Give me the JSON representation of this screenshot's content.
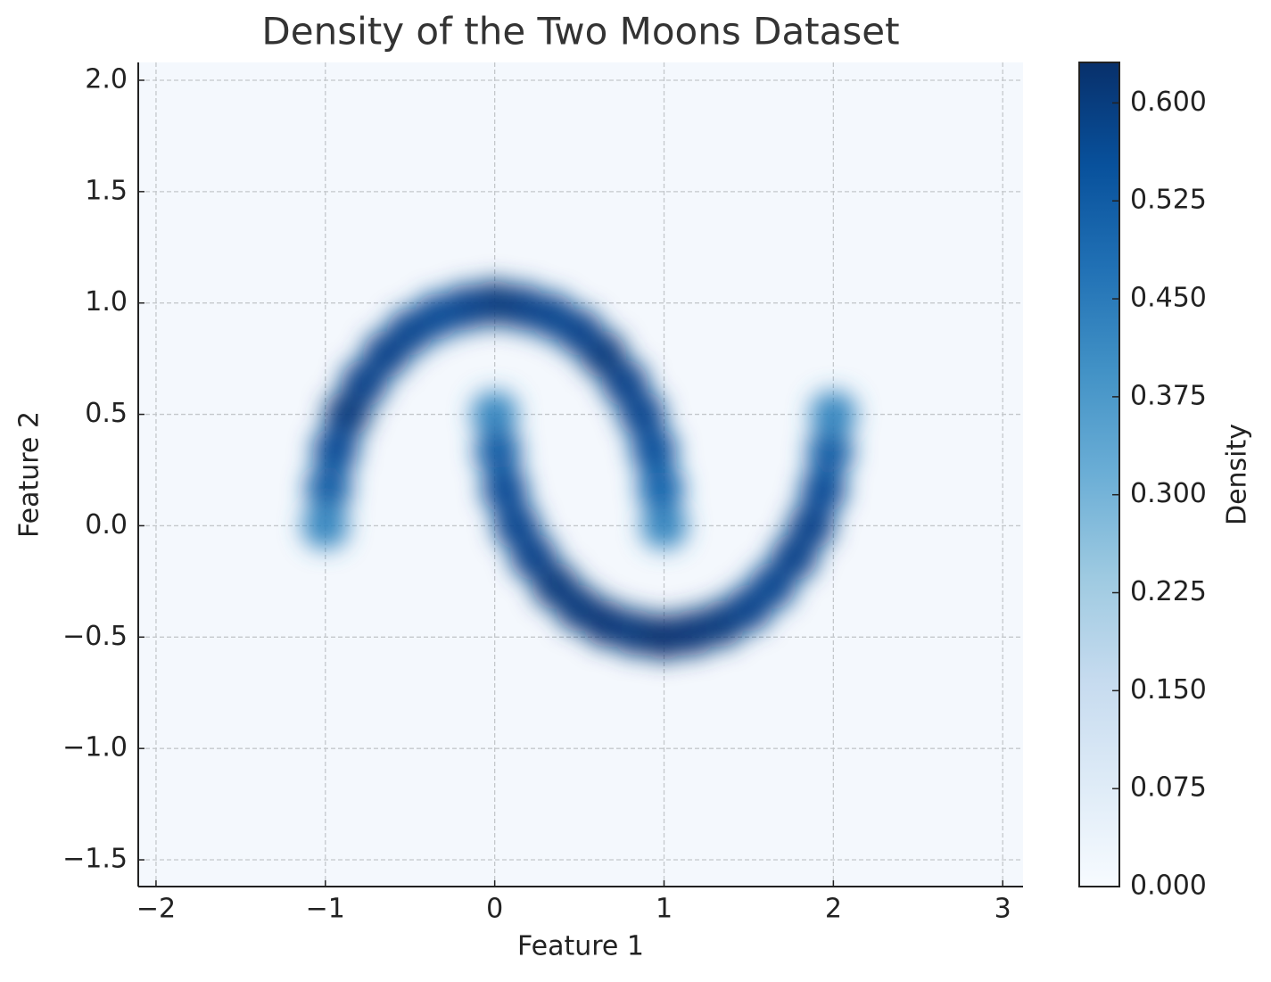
{
  "chart_data": {
    "type": "density",
    "title": "Density of the Two Moons Dataset",
    "xlabel": "Feature 1",
    "ylabel": "Feature 2",
    "x": [
      1,
      0.98,
      0.94,
      0.87,
      0.77,
      0.64,
      0.5,
      0.34,
      0.17,
      0,
      -0.17,
      -0.34,
      -0.5,
      -0.64,
      -0.77,
      -0.87,
      -0.94,
      -0.98,
      -1,
      0,
      0.02,
      0.06,
      0.13,
      0.23,
      0.36,
      0.5,
      0.66,
      0.83,
      1,
      1.17,
      1.34,
      1.5,
      1.64,
      1.77,
      1.87,
      1.94,
      1.98,
      2
    ],
    "y": [
      0,
      0.17,
      0.34,
      0.5,
      0.64,
      0.77,
      0.87,
      0.94,
      0.98,
      1,
      0.98,
      0.94,
      0.87,
      0.77,
      0.64,
      0.5,
      0.34,
      0.17,
      0,
      0.5,
      0.33,
      0.16,
      0,
      -0.14,
      -0.27,
      -0.37,
      -0.44,
      -0.48,
      -0.5,
      -0.48,
      -0.44,
      -0.37,
      -0.27,
      -0.14,
      0,
      0.16,
      0.33,
      0.5
    ],
    "values": [
      0.42,
      0.5,
      0.55,
      0.57,
      0.58,
      0.6,
      0.58,
      0.57,
      0.58,
      0.6,
      0.58,
      0.56,
      0.57,
      0.58,
      0.58,
      0.6,
      0.56,
      0.52,
      0.42,
      0.42,
      0.52,
      0.56,
      0.57,
      0.58,
      0.6,
      0.6,
      0.61,
      0.6,
      0.62,
      0.61,
      0.6,
      0.58,
      0.57,
      0.58,
      0.58,
      0.56,
      0.52,
      0.42
    ],
    "xlim": [
      -2.105,
      3.12
    ],
    "ylim": [
      -1.62,
      2.08
    ],
    "xticks": [
      {
        "value": -2,
        "label": "−2"
      },
      {
        "value": -1,
        "label": "−1"
      },
      0,
      1,
      2,
      3
    ],
    "yticks": [
      {
        "value": -1.5,
        "label": "−1.5"
      },
      {
        "value": -1,
        "label": "−1.0"
      },
      {
        "value": -0.5,
        "label": "−0.5"
      },
      {
        "value": 0,
        "label": "0.0"
      },
      0.5,
      {
        "value": 1,
        "label": "1.0"
      },
      1.5,
      {
        "value": 2,
        "label": "2.0"
      }
    ],
    "grid": true,
    "colorbar": {
      "label": "Density",
      "lim": [
        0,
        0.631
      ],
      "ticks": [
        {
          "value": 0,
          "label": "0.000"
        },
        {
          "value": 0.075,
          "label": "0.075"
        },
        {
          "value": 0.15,
          "label": "0.150"
        },
        {
          "value": 0.225,
          "label": "0.225"
        },
        {
          "value": 0.3,
          "label": "0.300"
        },
        {
          "value": 0.375,
          "label": "0.375"
        },
        {
          "value": 0.45,
          "label": "0.450"
        },
        {
          "value": 0.525,
          "label": "0.525"
        },
        {
          "value": 0.6,
          "label": "0.600"
        }
      ],
      "colors": [
        "#f7fbff",
        "#deebf7",
        "#c6dbef",
        "#9ecae1",
        "#6baed6",
        "#4292c6",
        "#2171b5",
        "#08519c",
        "#08306b"
      ]
    }
  }
}
